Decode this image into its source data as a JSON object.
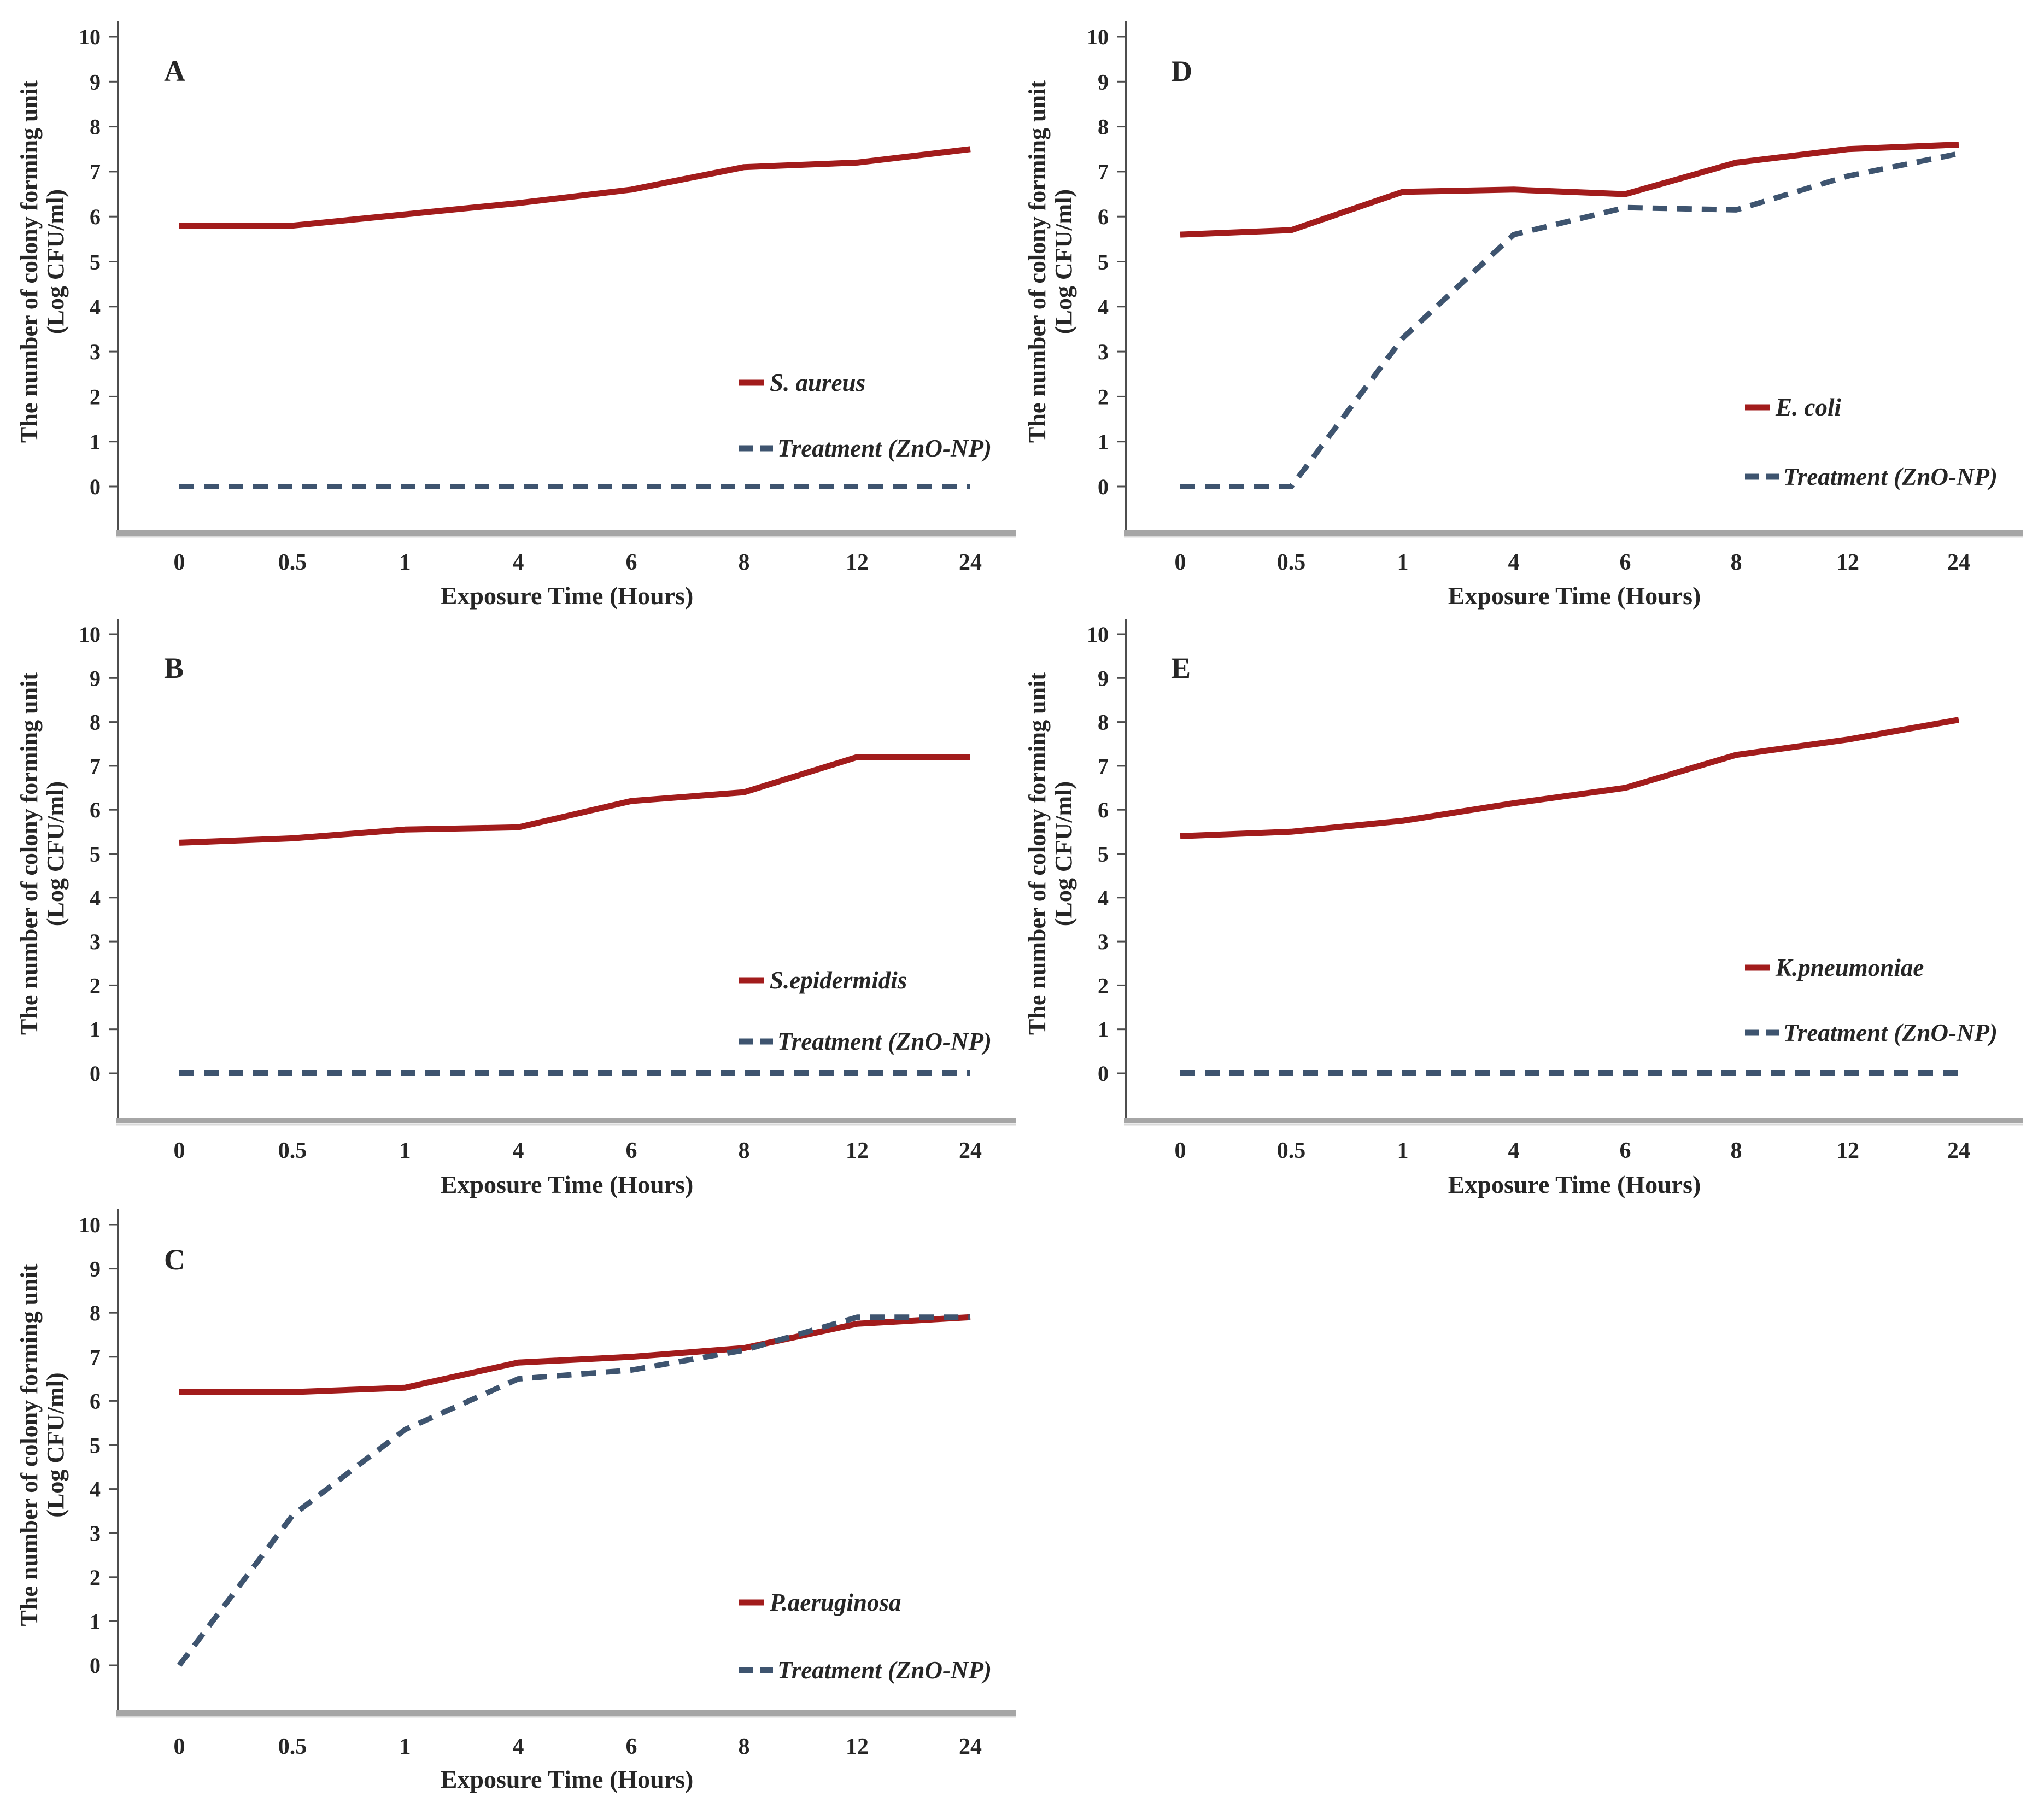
{
  "figure": {
    "background": "#ffffff",
    "description": "Five line charts (panels A-E) of bacterial colony counts over exposure time, untreated control vs ZnO-NP treatment"
  },
  "colors": {
    "control_line": "#a21c1c",
    "treatment_line": "#3e546f",
    "axis_line": "#4d4d4d",
    "baseline": "#a6a6a6",
    "text": "#262626"
  },
  "axis": {
    "x_label": "Exposure Time (Hours)",
    "y_label_line1": "The number of colony forming unit",
    "y_label_line2": "(Log CFU/ml)",
    "categories": [
      "0",
      "0.5",
      "1",
      "4",
      "6",
      "8",
      "12",
      "24"
    ],
    "y_ticks": [
      "0",
      "1",
      "2",
      "3",
      "4",
      "5",
      "6",
      "7",
      "8",
      "9",
      "10"
    ]
  },
  "chart_data": [
    {
      "type": "line",
      "panel": "A",
      "title": "",
      "xlabel": "Exposure Time (Hours)",
      "ylabel": "The number of colony forming unit (Log CFU/ml)",
      "ylim": [
        0,
        10
      ],
      "grid": false,
      "legend_position": "inside-right",
      "categories": [
        "0",
        "0.5",
        "1",
        "4",
        "6",
        "8",
        "12",
        "24"
      ],
      "series": [
        {
          "name": "S. aureus",
          "style": "solid",
          "color_key": "control_line",
          "values": [
            5.8,
            5.8,
            6.05,
            6.3,
            6.6,
            7.1,
            7.2,
            7.5
          ]
        },
        {
          "name": "Treatment (ZnO-NP)",
          "style": "dashed",
          "color_key": "treatment_line",
          "values": [
            0,
            0,
            0,
            0,
            0,
            0,
            0,
            0
          ]
        }
      ]
    },
    {
      "type": "line",
      "panel": "B",
      "title": "",
      "xlabel": "Exposure Time (Hours)",
      "ylabel": "The number of colony forming unit (Log CFU/ml)",
      "ylim": [
        0,
        10
      ],
      "grid": false,
      "legend_position": "inside-right",
      "categories": [
        "0",
        "0.5",
        "1",
        "4",
        "6",
        "8",
        "12",
        "24"
      ],
      "series": [
        {
          "name": "S.epidermidis",
          "style": "solid",
          "color_key": "control_line",
          "values": [
            5.25,
            5.35,
            5.55,
            5.6,
            6.2,
            6.4,
            7.2,
            7.2
          ]
        },
        {
          "name": "Treatment (ZnO-NP)",
          "style": "dashed",
          "color_key": "treatment_line",
          "values": [
            0,
            0,
            0,
            0,
            0,
            0,
            0,
            0
          ]
        }
      ]
    },
    {
      "type": "line",
      "panel": "C",
      "title": "",
      "xlabel": "Exposure Time (Hours)",
      "ylabel": "The number of colony forming unit (Log CFU/ml)",
      "ylim": [
        0,
        10
      ],
      "grid": false,
      "legend_position": "inside-right",
      "categories": [
        "0",
        "0.5",
        "1",
        "4",
        "6",
        "8",
        "12",
        "24"
      ],
      "series": [
        {
          "name": "P.aeruginosa",
          "style": "solid",
          "color_key": "control_line",
          "values": [
            6.2,
            6.2,
            6.3,
            6.87,
            7.0,
            7.2,
            7.75,
            7.9
          ]
        },
        {
          "name": "Treatment (ZnO-NP)",
          "style": "dashed",
          "color_key": "treatment_line",
          "values": [
            0,
            3.4,
            5.35,
            6.5,
            6.7,
            7.15,
            7.9,
            7.9
          ]
        }
      ]
    },
    {
      "type": "line",
      "panel": "D",
      "title": "",
      "xlabel": "Exposure Time (Hours)",
      "ylabel": "The number of colony forming unit (Log CFU/ml)",
      "ylim": [
        0,
        10
      ],
      "grid": false,
      "legend_position": "inside-right",
      "categories": [
        "0",
        "0.5",
        "1",
        "4",
        "6",
        "8",
        "12",
        "24"
      ],
      "series": [
        {
          "name": "E. coli",
          "style": "solid",
          "color_key": "control_line",
          "values": [
            5.6,
            5.7,
            6.55,
            6.6,
            6.5,
            7.2,
            7.5,
            7.6
          ]
        },
        {
          "name": "Treatment (ZnO-NP)",
          "style": "dashed",
          "color_key": "treatment_line",
          "values": [
            0,
            0,
            3.3,
            5.6,
            6.2,
            6.15,
            6.9,
            7.4
          ]
        }
      ]
    },
    {
      "type": "line",
      "panel": "E",
      "title": "",
      "xlabel": "Exposure Time (Hours)",
      "ylabel": "The number of colony forming unit (Log CFU/ml)",
      "ylim": [
        0,
        10
      ],
      "grid": false,
      "legend_position": "inside-right",
      "categories": [
        "0",
        "0.5",
        "1",
        "4",
        "6",
        "8",
        "12",
        "24"
      ],
      "series": [
        {
          "name": "K.pneumoniae",
          "style": "solid",
          "color_key": "control_line",
          "values": [
            5.4,
            5.5,
            5.75,
            6.15,
            6.5,
            7.25,
            7.6,
            8.05
          ]
        },
        {
          "name": "Treatment (ZnO-NP)",
          "style": "dashed",
          "color_key": "treatment_line",
          "values": [
            0,
            0,
            0,
            0,
            0,
            0,
            0,
            0
          ]
        }
      ]
    }
  ]
}
